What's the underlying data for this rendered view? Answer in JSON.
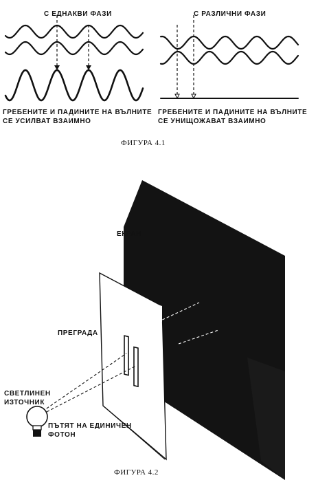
{
  "figure1": {
    "left_title": "С ЕДНАКВИ ФАЗИ",
    "right_title": "С РАЗЛИЧНИ ФАЗИ",
    "left_caption_line1": "ГРЕБЕНИТЕ И ПАДИНИТЕ НА ВЪЛНИТЕ",
    "left_caption_line2": "СЕ УСИЛВАТ ВЗАИМНО",
    "right_caption_line1": "ГРЕБЕНИТЕ И ПАДИНИТЕ НА ВЪЛНИТЕ",
    "right_caption_line2": "СЕ УНИЩОЖАВАТ ВЗАИМНО",
    "figure_caption": "ФИГУРА 4.1"
  },
  "figure2": {
    "screen_label": "ЕКРАН",
    "barrier_label": "ПРЕГРАДА",
    "source_label_line1": "СВЕТЛИНЕН",
    "source_label_line2": "ИЗТОЧНИК",
    "path_label_line1": "ПЪТЯТ НА ЕДИНИЧЕН",
    "path_label_line2": "ФОТОН",
    "figure_caption": "ФИГУРА 4.2"
  },
  "colors": {
    "ink": "#111111",
    "paper": "#ffffff"
  }
}
